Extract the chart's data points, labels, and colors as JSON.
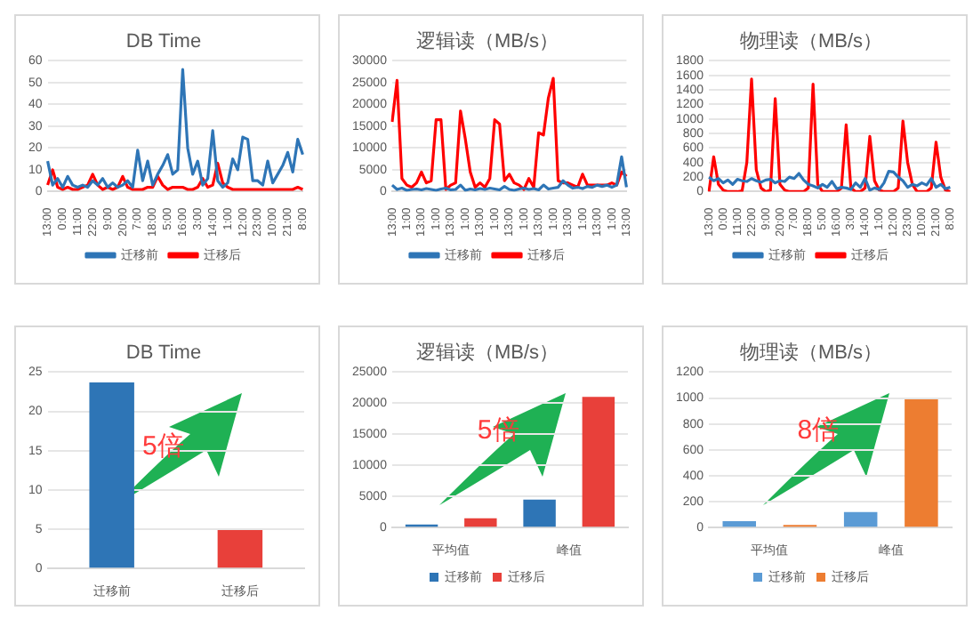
{
  "chart_data": [
    {
      "type": "line",
      "title": "DB Time",
      "categories": [
        "13:00",
        null,
        null,
        "0:00",
        null,
        null,
        "11:00",
        null,
        null,
        "22:00",
        null,
        null,
        "9:00",
        null,
        null,
        "20:00",
        null,
        null,
        "7:00",
        null,
        null,
        "18:00",
        null,
        null,
        "5:00",
        null,
        null,
        "16:00",
        null,
        null,
        "3:00",
        null,
        null,
        "14:00",
        null,
        null,
        "1:00",
        null,
        null,
        "12:00",
        null,
        null,
        "23:00",
        null,
        null,
        "10:00",
        null,
        null,
        "21:00",
        null,
        null,
        "8:00"
      ],
      "series": [
        {
          "name": "迁移前",
          "color": "#2e75b6",
          "values": [
            14,
            3,
            6,
            2,
            7,
            3,
            2,
            3,
            2,
            5,
            3,
            6,
            2,
            4,
            2,
            3,
            5,
            2,
            19,
            5,
            14,
            3,
            8,
            12,
            17,
            8,
            10,
            56,
            20,
            8,
            14,
            3,
            6,
            28,
            5,
            2,
            4,
            15,
            10,
            25,
            24,
            5,
            5,
            3,
            14,
            4,
            8,
            12,
            18,
            9,
            24,
            17
          ]
        },
        {
          "name": "迁移后",
          "color": "#ff0000",
          "values": [
            3,
            10,
            2,
            1,
            2,
            1,
            1,
            2,
            3,
            8,
            3,
            1,
            2,
            1,
            2,
            7,
            2,
            1,
            1,
            1,
            2,
            2,
            7,
            3,
            1,
            2,
            2,
            2,
            1,
            1,
            2,
            6,
            2,
            3,
            13,
            4,
            2,
            1,
            1,
            1,
            1,
            1,
            1,
            1,
            1,
            1,
            1,
            1,
            1,
            1,
            2,
            1
          ]
        }
      ],
      "ylim": [
        0,
        60
      ],
      "yticks": [
        0,
        10,
        20,
        30,
        40,
        50,
        60
      ],
      "grid": "y",
      "legend": "bottom",
      "marker": "none",
      "line_style": "solid"
    },
    {
      "type": "line",
      "title": "逻辑读（MB/s）",
      "categories": [
        "13:00",
        null,
        null,
        "1:00",
        null,
        null,
        "13:00",
        null,
        null,
        "1:00",
        null,
        null,
        "13:00",
        null,
        null,
        "1:00",
        null,
        null,
        "13:00",
        null,
        null,
        "1:00",
        null,
        null,
        "13:00",
        null,
        null,
        "1:00",
        null,
        null,
        "13:00",
        null,
        null,
        "1:00",
        null,
        null,
        "13:00",
        null,
        null,
        "1:00",
        null,
        null,
        "13:00",
        null,
        null,
        "1:00",
        null,
        null,
        "13:00"
      ],
      "series": [
        {
          "name": "迁移前",
          "color": "#2e75b6",
          "values": [
            1500,
            500,
            800,
            300,
            500,
            600,
            400,
            700,
            500,
            300,
            600,
            800,
            400,
            500,
            1500,
            300,
            600,
            400,
            700,
            500,
            800,
            600,
            400,
            1200,
            500,
            300,
            600,
            800,
            500,
            700,
            400,
            1500,
            600,
            800,
            1000,
            2500,
            1500,
            800,
            1000,
            700,
            1200,
            1000,
            1500,
            1200,
            1500,
            1000,
            1500,
            8000,
            1000
          ]
        },
        {
          "name": "迁移后",
          "color": "#ff0000",
          "values": [
            16000,
            25500,
            3000,
            1500,
            1000,
            2000,
            4500,
            2000,
            2500,
            16500,
            16500,
            500,
            1500,
            2000,
            18500,
            12000,
            4500,
            1000,
            2000,
            1000,
            3000,
            16500,
            15500,
            2500,
            4000,
            2000,
            1500,
            500,
            3000,
            1000,
            13500,
            13000,
            21500,
            26000,
            2500,
            2000,
            2000,
            1500,
            1000,
            4000,
            1500,
            1500,
            1500,
            1500,
            1500,
            2000,
            1500,
            4500,
            3500
          ]
        }
      ],
      "ylim": [
        0,
        30000
      ],
      "yticks": [
        0,
        5000,
        10000,
        15000,
        20000,
        25000,
        30000
      ],
      "grid": "y",
      "legend": "bottom",
      "marker": "none",
      "line_style": "solid"
    },
    {
      "type": "line",
      "title": "物理读（MB/s）",
      "categories": [
        "13:00",
        null,
        null,
        "0:00",
        null,
        null,
        "11:00",
        null,
        null,
        "22:00",
        null,
        null,
        "9:00",
        null,
        null,
        "20:00",
        null,
        null,
        "7:00",
        null,
        null,
        "18:00",
        null,
        null,
        "5:00",
        null,
        null,
        "16:00",
        null,
        null,
        "3:00",
        null,
        null,
        "14:00",
        null,
        null,
        "1:00",
        null,
        null,
        "12:00",
        null,
        null,
        "23:00",
        null,
        null,
        "10:00",
        null,
        null,
        "21:00",
        null,
        null,
        "8:00"
      ],
      "series": [
        {
          "name": "迁移前",
          "color": "#2e75b6",
          "values": [
            200,
            150,
            180,
            120,
            160,
            100,
            170,
            150,
            140,
            180,
            150,
            130,
            160,
            170,
            120,
            150,
            140,
            200,
            180,
            250,
            160,
            100,
            80,
            50,
            100,
            60,
            140,
            40,
            60,
            50,
            30,
            120,
            60,
            180,
            20,
            50,
            30,
            120,
            280,
            270,
            200,
            150,
            60,
            100,
            80,
            120,
            90,
            180,
            60,
            100,
            40,
            60
          ]
        },
        {
          "name": "迁移后",
          "color": "#ff0000",
          "values": [
            0,
            480,
            100,
            20,
            0,
            0,
            0,
            10,
            400,
            1550,
            300,
            50,
            0,
            20,
            1280,
            100,
            20,
            0,
            0,
            0,
            0,
            50,
            1480,
            100,
            0,
            0,
            0,
            0,
            50,
            920,
            50,
            0,
            0,
            50,
            760,
            150,
            20,
            0,
            0,
            0,
            50,
            970,
            400,
            100,
            0,
            0,
            0,
            50,
            680,
            200,
            20,
            0
          ]
        }
      ],
      "ylim": [
        0,
        1800
      ],
      "yticks": [
        0,
        200,
        400,
        600,
        800,
        1000,
        1200,
        1400,
        1600,
        1800
      ],
      "grid": "y",
      "legend": "bottom",
      "marker": "none",
      "line_style": "solid"
    },
    {
      "type": "bar",
      "title": "DB Time",
      "categories": [
        "迁移前",
        "迁移后"
      ],
      "values": [
        23.7,
        4.9
      ],
      "colors": [
        "#2e75b6",
        "#e8403a"
      ],
      "ylim": [
        0,
        25
      ],
      "yticks": [
        0,
        5,
        10,
        15,
        20,
        25
      ],
      "grid": "y",
      "annotations": [
        "5倍"
      ]
    },
    {
      "type": "bar",
      "title": "逻辑读（MB/s）",
      "categories": [
        "平均值",
        "峰值"
      ],
      "series": [
        {
          "name": "迁移前",
          "color": "#2e75b6",
          "values": [
            500,
            4500
          ]
        },
        {
          "name": "迁移后",
          "color": "#e8403a",
          "values": [
            1500,
            21000
          ]
        }
      ],
      "ylim": [
        0,
        25000
      ],
      "yticks": [
        0,
        5000,
        10000,
        15000,
        20000,
        25000
      ],
      "grid": "y",
      "legend": "bottom",
      "annotations": [
        "5倍"
      ]
    },
    {
      "type": "bar",
      "title": "物理读（MB/s）",
      "categories": [
        "平均值",
        "峰值"
      ],
      "series": [
        {
          "name": "迁移前",
          "color": "#5b9bd5",
          "values": [
            50,
            120
          ]
        },
        {
          "name": "迁移后",
          "color": "#ed7d31",
          "values": [
            20,
            990
          ]
        }
      ],
      "ylim": [
        0,
        1200
      ],
      "yticks": [
        0,
        200,
        400,
        600,
        800,
        1000,
        1200
      ],
      "grid": "y",
      "legend": "bottom",
      "annotations": [
        "8倍"
      ]
    }
  ]
}
